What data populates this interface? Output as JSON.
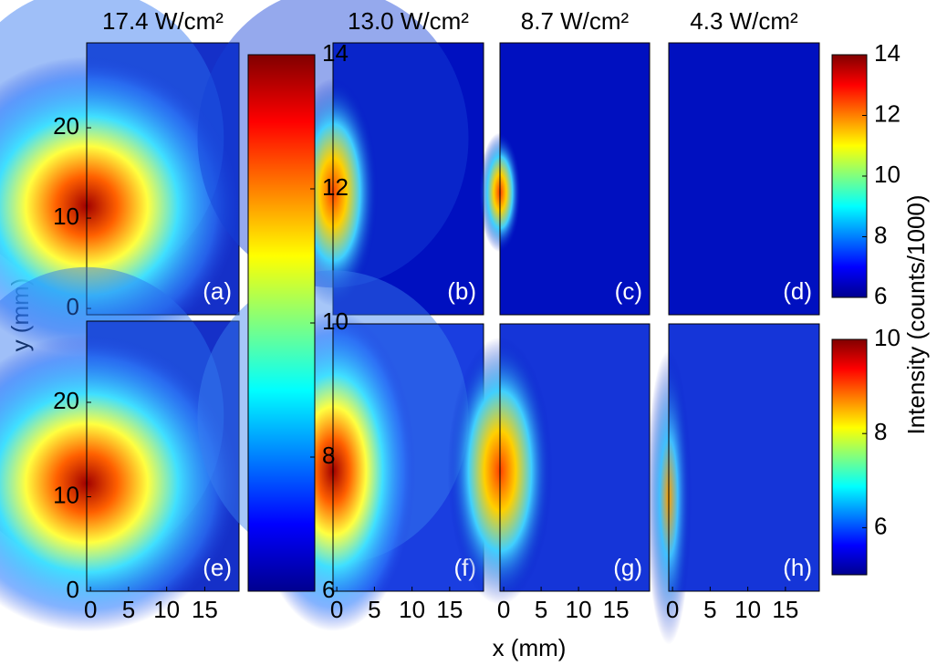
{
  "chart_data": [
    {
      "type": "heatmap",
      "title": "17.4 W/cm²",
      "panel_label": "(a)",
      "ylim": [
        -0.7,
        29.4
      ],
      "yticks": [
        0,
        10,
        20
      ]
    },
    {
      "type": "heatmap",
      "title": "13.0 W/cm²",
      "panel_label": "(b)"
    },
    {
      "type": "heatmap",
      "title": "8.7 W/cm²",
      "panel_label": "(c)"
    },
    {
      "type": "heatmap",
      "title": "4.3 W/cm²",
      "panel_label": "(d)"
    },
    {
      "type": "heatmap",
      "panel_label": "(e)",
      "xlim": [
        -0.5,
        19.5
      ],
      "xticks": [
        0,
        5,
        10,
        15
      ],
      "ylim": [
        0,
        28.6
      ],
      "yticks": [
        0,
        10,
        20
      ]
    },
    {
      "type": "heatmap",
      "panel_label": "(f)",
      "xlim": [
        -0.5,
        19.5
      ],
      "xticks": [
        0,
        5,
        10,
        15
      ]
    },
    {
      "type": "heatmap",
      "panel_label": "(g)",
      "xlim": [
        -0.5,
        19.5
      ],
      "xticks": [
        0,
        5,
        10,
        15
      ]
    },
    {
      "type": "heatmap",
      "panel_label": "(h)",
      "xlim": [
        -0.5,
        19.5
      ],
      "xticks": [
        0,
        5,
        10,
        15
      ]
    },
    {
      "type": "colorbar",
      "colormap": "jet",
      "ylim": [
        6,
        14
      ],
      "yticks": [
        6,
        8,
        10,
        12,
        14
      ]
    },
    {
      "type": "colorbar",
      "colormap": "jet",
      "ylim": [
        6,
        14
      ],
      "yticks": [
        6,
        8,
        10,
        12,
        14
      ]
    },
    {
      "type": "colorbar",
      "colormap": "jet",
      "ylim": [
        5,
        10
      ],
      "yticks": [
        6,
        8,
        10
      ]
    }
  ],
  "labels": {
    "x": "x (mm)",
    "y": "y (mm)",
    "intensity": "Intensity (counts/1000)"
  }
}
